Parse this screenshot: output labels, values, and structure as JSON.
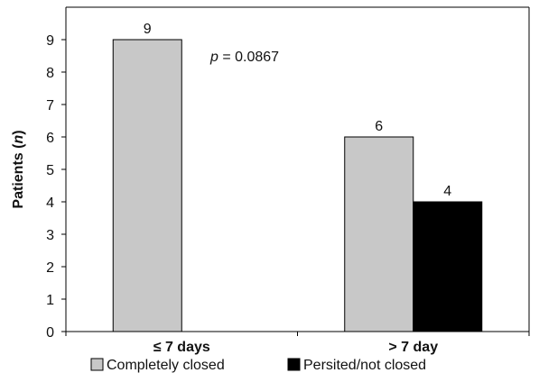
{
  "chart_data": {
    "type": "bar",
    "categories": [
      "≤ 7 days",
      "> 7 day"
    ],
    "series": [
      {
        "name": "Completely closed",
        "values": [
          9,
          6
        ],
        "color": "#c8c8c8"
      },
      {
        "name": "Persited/not closed",
        "values": [
          null,
          4
        ],
        "color": "#000000"
      }
    ],
    "ylabel_prefix": "Patients (",
    "ylabel_var": "n",
    "ylabel_suffix": ")",
    "ylim": [
      0,
      10
    ],
    "yticks": [
      0,
      1,
      2,
      3,
      4,
      5,
      6,
      7,
      8,
      9
    ],
    "grid": false,
    "legend_position": "bottom",
    "annotation": {
      "var": "p",
      "text": " = 0.0867"
    }
  }
}
